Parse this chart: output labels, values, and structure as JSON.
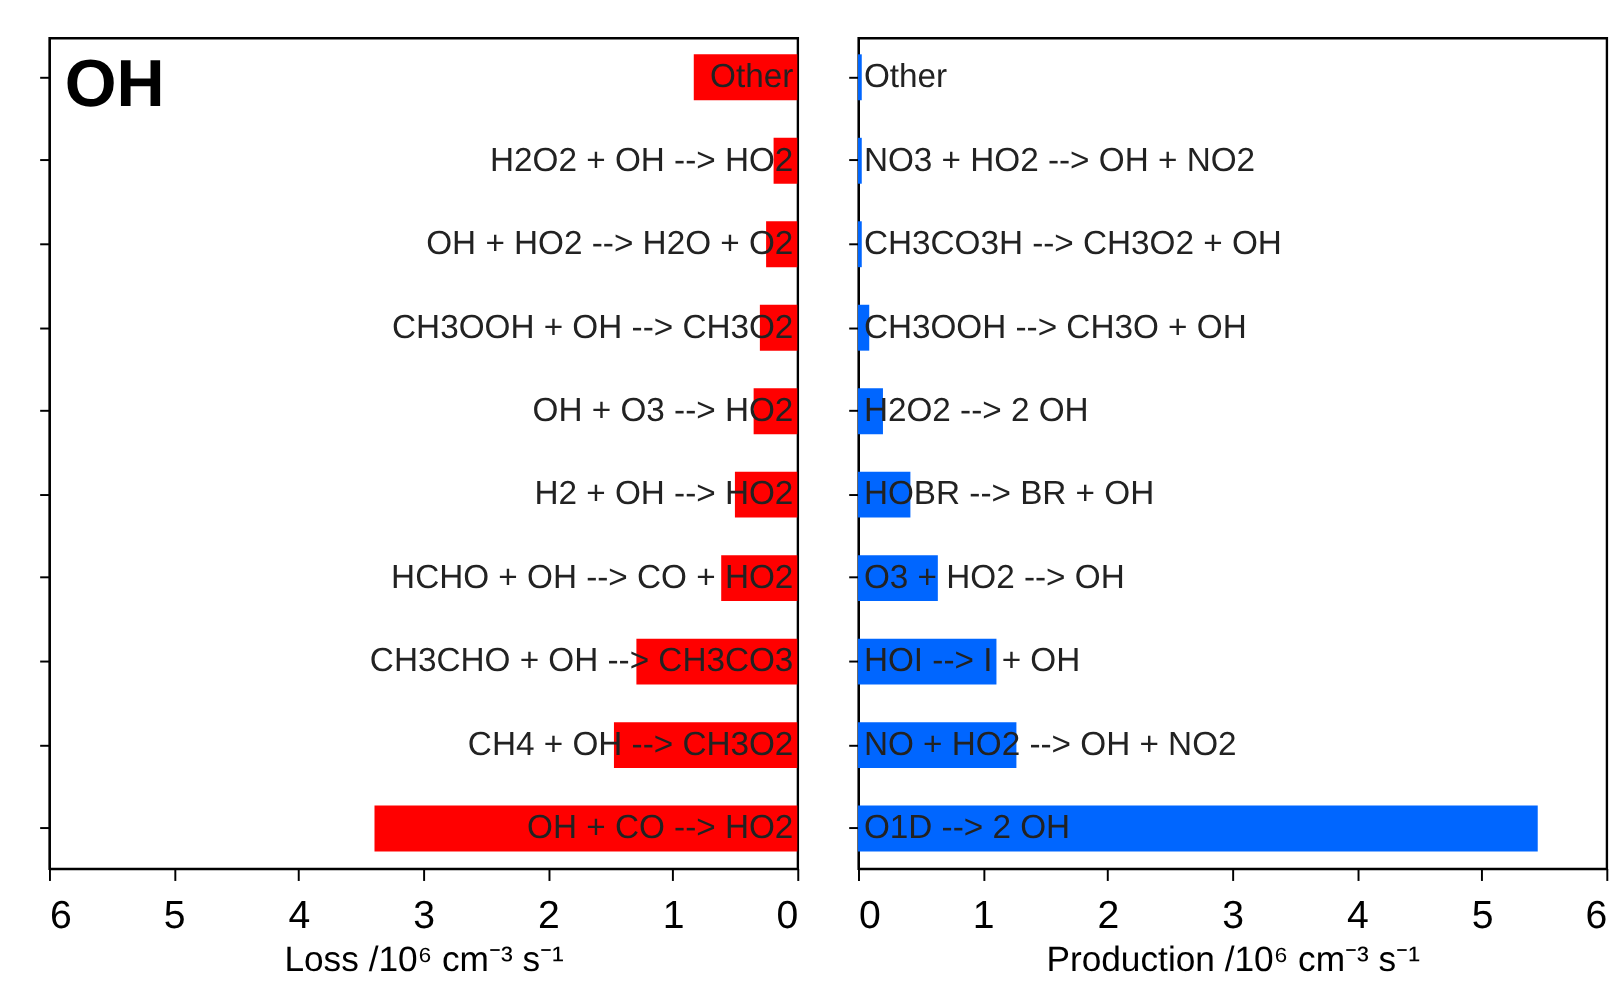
{
  "chart_data": [
    {
      "type": "bar",
      "orientation": "horizontal",
      "title": "OH",
      "xlabel": "Loss /10⁶ cm⁻³ s⁻¹",
      "categories": [
        "Other",
        "H2O2 + OH --> HO2",
        "OH + HO2 --> H2O + O2",
        "CH3OOH + OH --> CH3O2",
        "OH + O3 --> HO2",
        "H2 + OH --> HO2",
        "HCHO + OH --> CO + HO2",
        "CH3CHO + OH --> CH3CO3",
        "CH4 + OH --> CH3O2",
        "OH + CO --> HO2"
      ],
      "values": [
        0.83,
        0.19,
        0.25,
        0.3,
        0.35,
        0.5,
        0.61,
        1.29,
        1.47,
        3.39
      ],
      "color": "#ff0000",
      "xlim": [
        6,
        0
      ],
      "xticks": [
        6,
        5,
        4,
        3,
        2,
        1,
        0
      ],
      "tick_labels": "x",
      "grid": false
    },
    {
      "type": "bar",
      "orientation": "horizontal",
      "xlabel": "Production /10⁶ cm⁻³ s⁻¹",
      "categories": [
        "Other",
        "NO3 + HO2 --> OH + NO2",
        "CH3CO3H --> CH3O2 + OH",
        "CH3OOH --> CH3O + OH",
        "H2O2 --> 2 OH",
        "HOBR --> BR + OH",
        "O3 + HO2 --> OH",
        "HOI --> I + OH",
        "NO + HO2 --> OH + NO2",
        "O1D --> 2 OH"
      ],
      "values": [
        0.03,
        0.03,
        0.03,
        0.09,
        0.2,
        0.42,
        0.64,
        1.11,
        1.27,
        5.45
      ],
      "color": "#0066ff",
      "xlim": [
        0,
        6
      ],
      "xticks": [
        0,
        1,
        2,
        3,
        4,
        5,
        6
      ],
      "tick_labels": "x",
      "grid": false
    }
  ]
}
